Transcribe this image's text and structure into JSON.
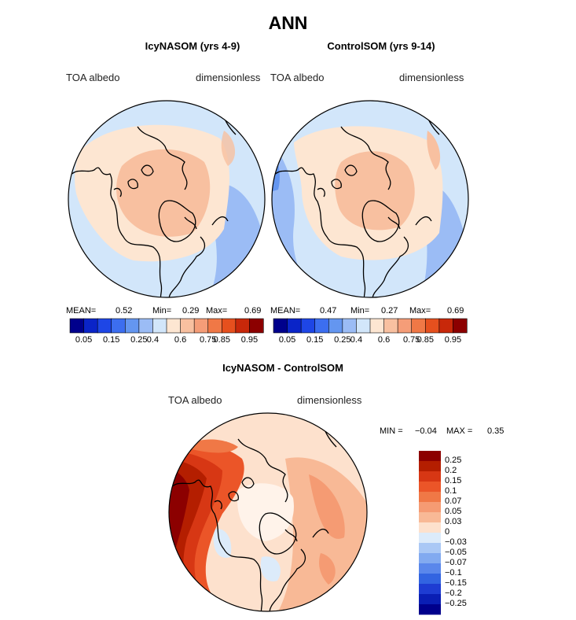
{
  "figure": {
    "title": "ANN",
    "panels": [
      {
        "id": "left",
        "title": "IcyNASOM (yrs 4-9)",
        "variable_label": "TOA albedo",
        "units_label": "dimensionless",
        "stats": {
          "mean_label": "MEAN=",
          "mean": "0.52",
          "min_label": "Min=",
          "min": "0.29",
          "max_label": "Max=",
          "max": "0.69"
        }
      },
      {
        "id": "right",
        "title": "ControlSOM (yrs 9-14)",
        "variable_label": "TOA albedo",
        "units_label": "dimensionless",
        "stats": {
          "mean_label": "MEAN=",
          "mean": "0.47",
          "min_label": "Min=",
          "min": "0.27",
          "max_label": "Max=",
          "max": "0.69"
        }
      },
      {
        "id": "diff",
        "title": "IcyNASOM - ControlSOM",
        "variable_label": "TOA albedo",
        "units_label": "dimensionless",
        "stats": {
          "min_label": "MIN =",
          "min": "−0.04",
          "max_label": "MAX =",
          "max": "0.35"
        }
      }
    ],
    "albedo_colorbar": {
      "colors": [
        "#00008c",
        "#0a24c8",
        "#1e46e6",
        "#3c6ef0",
        "#6496f0",
        "#9bbcf5",
        "#d2e6fa",
        "#fde6d2",
        "#f8c0a0",
        "#f59d78",
        "#f07846",
        "#e6501e",
        "#c8280a",
        "#8c0000"
      ],
      "tick_labels": [
        "0.05",
        "0.15",
        "0.25",
        "0.4",
        "0.6",
        "0.75",
        "0.85",
        "0.95"
      ]
    },
    "diff_colorbar": {
      "colors_top_to_bottom": [
        "#8c0000",
        "#b41e00",
        "#d73714",
        "#eb5528",
        "#f07846",
        "#f59b73",
        "#f8b996",
        "#fde1cd",
        "#dcebfa",
        "#aac8f5",
        "#82aaf0",
        "#5a87eb",
        "#3264e1",
        "#1e3cd2",
        "#0a1eb4",
        "#00008c"
      ],
      "tick_labels": [
        "0.25",
        "0.2",
        "0.15",
        "0.1",
        "0.07",
        "0.05",
        "0.03",
        "0",
        "−0.03",
        "−0.05",
        "−0.07",
        "−0.1",
        "−0.15",
        "−0.2",
        "−0.25"
      ]
    }
  }
}
